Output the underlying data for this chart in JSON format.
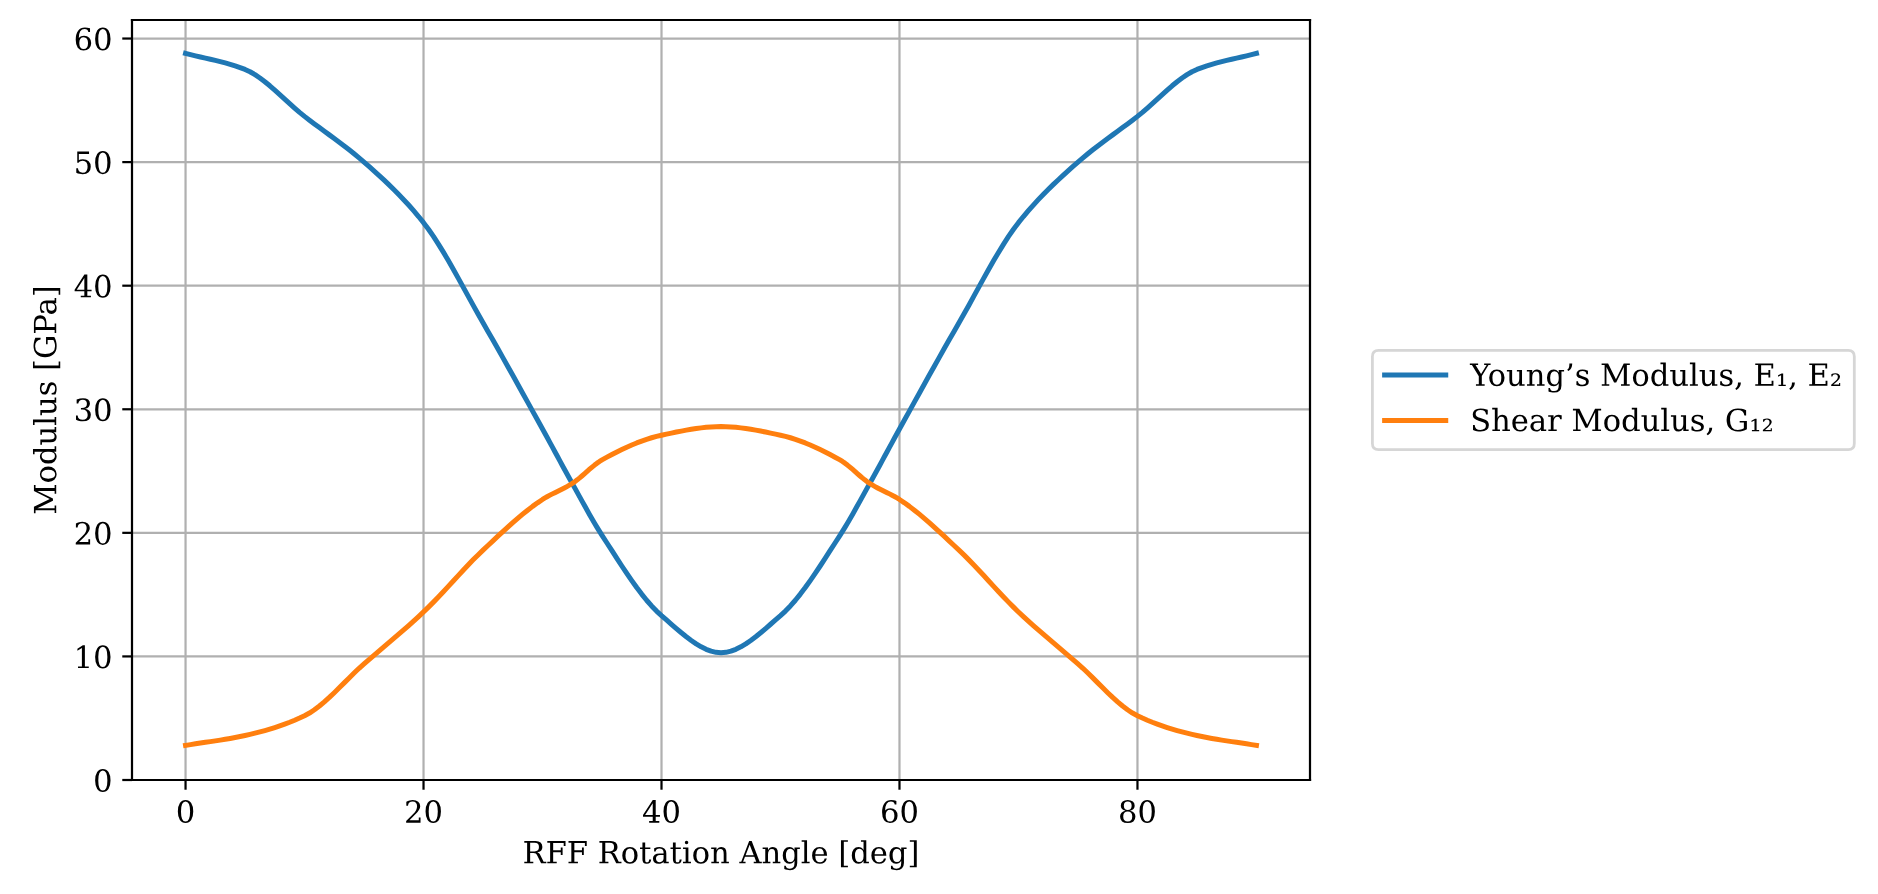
{
  "chart_data": {
    "type": "line",
    "xlabel": "RFF Rotation Angle [deg]",
    "ylabel": "Modulus [GPa]",
    "x": [
      0,
      5,
      10,
      15,
      20,
      25,
      30,
      32.5,
      35,
      40,
      45,
      50,
      55,
      57.5,
      60,
      65,
      70,
      75,
      80,
      85,
      90
    ],
    "series": [
      {
        "name": "Young’s Modulus, E₁, E₂",
        "color": "#1f77b4",
        "values": [
          58.8,
          57.5,
          53.7,
          50,
          45.1,
          37,
          28.4,
          24,
          19.8,
          13.3,
          10.3,
          13.3,
          19.8,
          24,
          28.4,
          37,
          45.1,
          50,
          53.7,
          57.5,
          58.8
        ]
      },
      {
        "name": "Shear Modulus, G₁₂",
        "color": "#ff7f0e",
        "values": [
          2.8,
          3.6,
          5.2,
          9.4,
          13.6,
          18.6,
          22.7,
          24,
          25.9,
          27.9,
          28.6,
          27.9,
          25.9,
          24,
          22.7,
          18.6,
          13.6,
          9.4,
          5.2,
          3.6,
          2.8
        ]
      }
    ],
    "xlim": [
      -4.5,
      94.5
    ],
    "ylim": [
      0,
      61.5
    ],
    "xticks": [
      0,
      20,
      40,
      60,
      80
    ],
    "yticks": [
      0,
      10,
      20,
      30,
      40,
      50,
      60
    ],
    "grid": true,
    "legend": "right",
    "marker": "none",
    "line_style": "solid"
  }
}
